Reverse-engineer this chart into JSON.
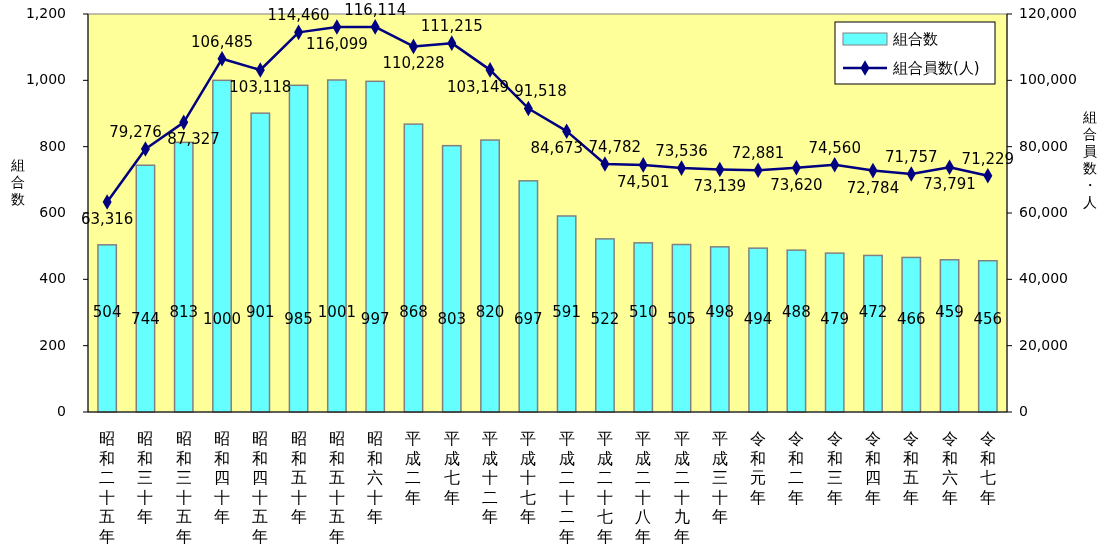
{
  "chart_data": {
    "type": "bar",
    "categories": [
      "昭和二十五年",
      "昭和三十年",
      "昭和三十五年",
      "昭和四十年",
      "昭和四十五年",
      "昭和五十年",
      "昭和五十五年",
      "昭和六十年",
      "平成二年",
      "平成七年",
      "平成十二年",
      "平成十七年",
      "平成二十二年",
      "平成二十七年",
      "平成二十八年",
      "平成二十九年",
      "平成三十年",
      "令和元年",
      "令和二年",
      "令和三年",
      "令和四年",
      "令和五年",
      "令和六年",
      "令和七年"
    ],
    "series": [
      {
        "name": "組合数",
        "color": "#66ffff",
        "values": [
          504,
          744,
          813,
          1000,
          901,
          985,
          1001,
          997,
          868,
          803,
          820,
          697,
          591,
          522,
          510,
          505,
          498,
          494,
          488,
          479,
          472,
          466,
          459,
          456
        ]
      },
      {
        "name": "組合員数(人)",
        "type": "line",
        "axis": "y2",
        "color": "#000080",
        "marker": "diamond",
        "values": [
          63316,
          79276,
          87327,
          106485,
          103118,
          114460,
          116099,
          116114,
          110228,
          111215,
          103149,
          91518,
          84673,
          74782,
          74501,
          73536,
          73139,
          72881,
          73620,
          74560,
          72784,
          71757,
          73791,
          71229
        ],
        "value_labels": [
          "63,316",
          "79,276",
          "87,327",
          "106,485",
          "103,118",
          "114,460",
          "116,099",
          "116,114",
          "110,228",
          "111,215",
          "103,149",
          "91,518",
          "84,673",
          "74,782",
          "74,501",
          "73,536",
          "73,139",
          "72,881",
          "73,620",
          "74,560",
          "72,784",
          "71,757",
          "73,791",
          "71,229"
        ]
      }
    ],
    "ylabel": "組合数",
    "y2label": "組合員数・人",
    "ylim": [
      0,
      1200
    ],
    "yticks": [
      0,
      200,
      400,
      600,
      800,
      {
        "value": 1000,
        "label": "1,000"
      },
      {
        "value": 1200,
        "label": "1,200"
      }
    ],
    "y2lim": [
      0,
      120000
    ],
    "y2ticks": [
      0,
      {
        "value": 20000,
        "label": "20,000"
      },
      {
        "value": 40000,
        "label": "40,000"
      },
      {
        "value": 60000,
        "label": "60,000"
      },
      {
        "value": 80000,
        "label": "80,000"
      },
      {
        "value": 100000,
        "label": "100,000"
      },
      {
        "value": 120000,
        "label": "120,000"
      }
    ],
    "data_labels": true,
    "legend": "top right",
    "grid": false
  }
}
